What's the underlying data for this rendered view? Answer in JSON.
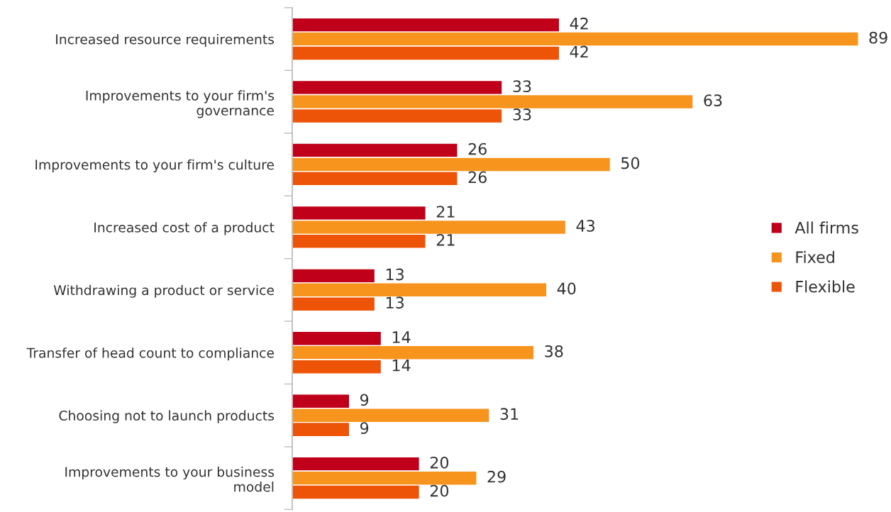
{
  "chart_data": {
    "type": "bar",
    "orientation": "horizontal",
    "categories": [
      "Increased resource requirements",
      "Improvements to your firm's\ngovernance",
      "Improvements to your firm's culture",
      "Increased cost of a product",
      "Withdrawing a product or service",
      "Transfer of head count to compliance",
      "Choosing not to launch products",
      "Improvements to your business\nmodel"
    ],
    "series": [
      {
        "name": "All firms",
        "color": "#c0001a",
        "values": [
          42,
          33,
          26,
          21,
          13,
          14,
          9,
          20
        ]
      },
      {
        "name": "Fixed",
        "color": "#f7941d",
        "values": [
          89,
          63,
          50,
          43,
          40,
          38,
          31,
          29
        ]
      },
      {
        "name": "Flexible",
        "color": "#ee5408",
        "values": [
          42,
          33,
          26,
          21,
          13,
          14,
          9,
          20
        ]
      }
    ],
    "data_labels": true,
    "legend": "right",
    "grid": false
  }
}
